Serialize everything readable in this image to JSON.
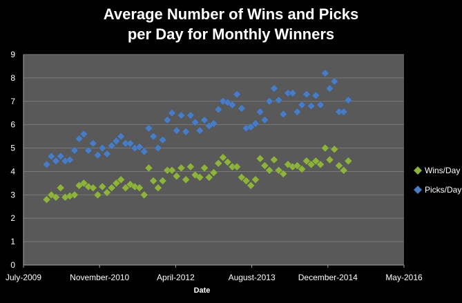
{
  "chart_data": {
    "type": "scatter",
    "title_lines": [
      "Average Number of Wins and Picks",
      "per Day for Monthly Winners"
    ],
    "xlabel": "Date",
    "ylabel": "",
    "x_ticks": [
      "July-2009",
      "November-2010",
      "April-2012",
      "August-2013",
      "December-2014",
      "May-2016"
    ],
    "y_ticks": [
      "0",
      "1",
      "2",
      "3",
      "4",
      "5",
      "6",
      "7",
      "8",
      "9"
    ],
    "ylim": [
      0,
      9
    ],
    "xlim": [
      "2009-07",
      "2016-05"
    ],
    "grid": "horizontal",
    "legend_position": "right",
    "plot_background": "#595959",
    "colors": {
      "wins": "#8db33e",
      "picks": "#4a7cc3",
      "gridline": "#7a7a7a"
    },
    "series": [
      {
        "name": "Wins/Day",
        "points": [
          [
            "2009-12",
            2.8
          ],
          [
            "2010-01",
            3.0
          ],
          [
            "2010-02",
            2.9
          ],
          [
            "2010-03",
            3.3
          ],
          [
            "2010-04",
            2.9
          ],
          [
            "2010-05",
            2.95
          ],
          [
            "2010-06",
            3.0
          ],
          [
            "2010-07",
            3.4
          ],
          [
            "2010-08",
            3.5
          ],
          [
            "2010-09",
            3.35
          ],
          [
            "2010-10",
            3.3
          ],
          [
            "2010-11",
            3.0
          ],
          [
            "2010-12",
            3.35
          ],
          [
            "2011-01",
            3.1
          ],
          [
            "2011-02",
            3.3
          ],
          [
            "2011-03",
            3.5
          ],
          [
            "2011-04",
            3.65
          ],
          [
            "2011-05",
            3.3
          ],
          [
            "2011-06",
            3.45
          ],
          [
            "2011-07",
            3.35
          ],
          [
            "2011-08",
            3.3
          ],
          [
            "2011-09",
            3.0
          ],
          [
            "2011-10",
            4.15
          ],
          [
            "2011-11",
            3.6
          ],
          [
            "2011-12",
            3.3
          ],
          [
            "2012-01",
            3.6
          ],
          [
            "2012-02",
            4.05
          ],
          [
            "2012-03",
            4.05
          ],
          [
            "2012-04",
            3.8
          ],
          [
            "2012-05",
            4.15
          ],
          [
            "2012-06",
            3.65
          ],
          [
            "2012-07",
            4.2
          ],
          [
            "2012-08",
            3.85
          ],
          [
            "2012-09",
            3.75
          ],
          [
            "2012-10",
            4.15
          ],
          [
            "2012-11",
            3.75
          ],
          [
            "2012-12",
            3.95
          ],
          [
            "2013-01",
            4.35
          ],
          [
            "2013-02",
            4.6
          ],
          [
            "2013-03",
            4.4
          ],
          [
            "2013-04",
            4.2
          ],
          [
            "2013-05",
            4.2
          ],
          [
            "2013-06",
            3.75
          ],
          [
            "2013-07",
            3.6
          ],
          [
            "2013-08",
            3.4
          ],
          [
            "2013-09",
            3.65
          ],
          [
            "2013-10",
            4.55
          ],
          [
            "2013-11",
            4.25
          ],
          [
            "2013-12",
            4.05
          ],
          [
            "2014-01",
            4.5
          ],
          [
            "2014-02",
            4.05
          ],
          [
            "2014-03",
            3.9
          ],
          [
            "2014-04",
            4.3
          ],
          [
            "2014-05",
            4.2
          ],
          [
            "2014-06",
            4.25
          ],
          [
            "2014-07",
            4.1
          ],
          [
            "2014-08",
            4.45
          ],
          [
            "2014-09",
            4.3
          ],
          [
            "2014-10",
            4.45
          ],
          [
            "2014-11",
            4.3
          ],
          [
            "2014-12",
            5.0
          ],
          [
            "2015-01",
            4.5
          ],
          [
            "2015-02",
            4.95
          ],
          [
            "2015-03",
            4.25
          ],
          [
            "2015-04",
            4.05
          ],
          [
            "2015-05",
            4.45
          ]
        ]
      },
      {
        "name": "Picks/Day",
        "points": [
          [
            "2009-12",
            4.3
          ],
          [
            "2010-01",
            4.65
          ],
          [
            "2010-02",
            4.45
          ],
          [
            "2010-03",
            4.65
          ],
          [
            "2010-04",
            4.45
          ],
          [
            "2010-05",
            4.5
          ],
          [
            "2010-06",
            4.9
          ],
          [
            "2010-07",
            5.4
          ],
          [
            "2010-08",
            5.6
          ],
          [
            "2010-09",
            4.9
          ],
          [
            "2010-10",
            5.2
          ],
          [
            "2010-11",
            4.7
          ],
          [
            "2010-12",
            5.0
          ],
          [
            "2011-01",
            4.75
          ],
          [
            "2011-02",
            5.1
          ],
          [
            "2011-03",
            5.3
          ],
          [
            "2011-04",
            5.5
          ],
          [
            "2011-05",
            5.2
          ],
          [
            "2011-06",
            5.2
          ],
          [
            "2011-07",
            5.0
          ],
          [
            "2011-08",
            5.05
          ],
          [
            "2011-09",
            4.85
          ],
          [
            "2011-10",
            5.85
          ],
          [
            "2011-11",
            5.5
          ],
          [
            "2011-12",
            5.0
          ],
          [
            "2012-01",
            5.35
          ],
          [
            "2012-02",
            6.2
          ],
          [
            "2012-03",
            6.5
          ],
          [
            "2012-04",
            5.75
          ],
          [
            "2012-05",
            6.4
          ],
          [
            "2012-06",
            5.7
          ],
          [
            "2012-07",
            6.4
          ],
          [
            "2012-08",
            6.1
          ],
          [
            "2012-09",
            5.75
          ],
          [
            "2012-10",
            6.2
          ],
          [
            "2012-11",
            5.95
          ],
          [
            "2012-12",
            6.05
          ],
          [
            "2013-01",
            6.65
          ],
          [
            "2013-02",
            7.0
          ],
          [
            "2013-03",
            6.95
          ],
          [
            "2013-04",
            6.85
          ],
          [
            "2013-05",
            7.3
          ],
          [
            "2013-06",
            6.7
          ],
          [
            "2013-07",
            5.85
          ],
          [
            "2013-08",
            5.9
          ],
          [
            "2013-09",
            6.05
          ],
          [
            "2013-10",
            6.55
          ],
          [
            "2013-11",
            6.2
          ],
          [
            "2013-12",
            7.0
          ],
          [
            "2014-01",
            7.55
          ],
          [
            "2014-02",
            7.05
          ],
          [
            "2014-03",
            6.45
          ],
          [
            "2014-04",
            7.35
          ],
          [
            "2014-05",
            7.35
          ],
          [
            "2014-06",
            6.55
          ],
          [
            "2014-07",
            6.85
          ],
          [
            "2014-08",
            7.3
          ],
          [
            "2014-09",
            6.8
          ],
          [
            "2014-10",
            7.25
          ],
          [
            "2014-11",
            6.85
          ],
          [
            "2014-12",
            8.2
          ],
          [
            "2015-01",
            7.55
          ],
          [
            "2015-02",
            7.85
          ],
          [
            "2015-03",
            6.55
          ],
          [
            "2015-04",
            6.55
          ],
          [
            "2015-05",
            7.05
          ]
        ]
      }
    ]
  }
}
